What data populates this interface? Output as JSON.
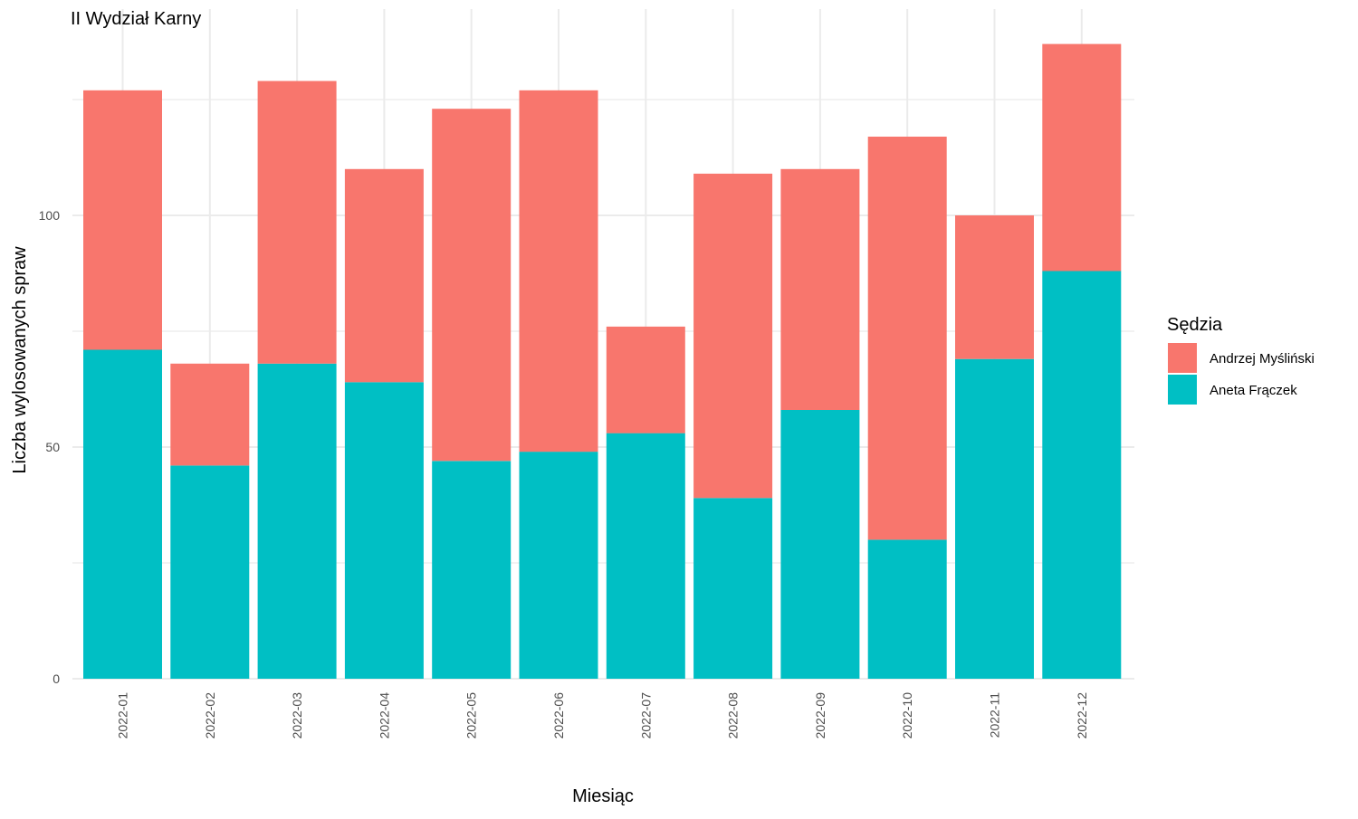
{
  "chart_data": {
    "type": "bar",
    "stacked": true,
    "title": "II Wydział Karny",
    "xlabel": "Miesiąc",
    "ylabel": "Liczba wylosowanych spraw",
    "categories": [
      "2022-01",
      "2022-02",
      "2022-03",
      "2022-04",
      "2022-05",
      "2022-06",
      "2022-07",
      "2022-08",
      "2022-09",
      "2022-10",
      "2022-11",
      "2022-12"
    ],
    "series": [
      {
        "name": "Aneta Frączek",
        "color": "#00BFC4",
        "values": [
          71,
          46,
          68,
          64,
          47,
          49,
          53,
          39,
          58,
          30,
          69,
          88
        ]
      },
      {
        "name": "Andrzej Myśliński",
        "color": "#F8766D",
        "values": [
          56,
          22,
          61,
          46,
          76,
          78,
          23,
          70,
          52,
          87,
          31,
          49
        ]
      }
    ],
    "yticks": [
      0,
      50,
      100
    ],
    "ylim": [
      0,
      140
    ],
    "grid": true,
    "legend": {
      "title": "Sędzia",
      "position": "right",
      "order": [
        "Andrzej Myśliński",
        "Aneta Frączek"
      ]
    }
  }
}
